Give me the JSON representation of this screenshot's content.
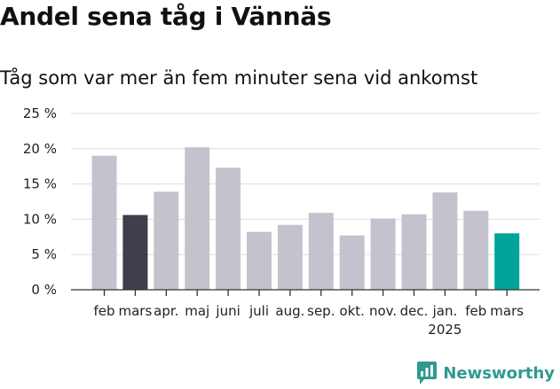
{
  "page": {
    "title": "Andel sena tåg i Vännäs",
    "subtitle": "Tåg som var mer än fem minuter sena vid ankomst"
  },
  "brand": {
    "name": "Newsworthy",
    "color": "#2f9a8f",
    "icon": "newsworthy-chart-logo-icon"
  },
  "chart_data": {
    "type": "bar",
    "categories": [
      "feb",
      "mars",
      "apr.",
      "maj",
      "juni",
      "juli",
      "aug.",
      "sep.",
      "okt.",
      "nov.",
      "dec.",
      "jan.",
      "feb",
      "mars"
    ],
    "year_labels": [
      {
        "category_index": 11,
        "label": "2025"
      }
    ],
    "values": [
      19.0,
      10.6,
      13.9,
      20.2,
      17.3,
      8.2,
      9.2,
      10.9,
      7.7,
      10.1,
      10.7,
      13.8,
      11.2,
      8.0
    ],
    "highlight": {
      "dark_index": 1,
      "accent_index": 13
    },
    "colors": {
      "default": "#c4c3cd",
      "dark": "#3f3e4b",
      "accent": "#00a49a",
      "grid": "#dddddd",
      "axis": "#333333"
    },
    "y_unit_suffix": " %",
    "yticks": [
      0,
      5,
      10,
      15,
      20,
      25
    ],
    "ylim": [
      0,
      25
    ],
    "grid": true,
    "legend": "none",
    "xlabel": "",
    "ylabel": ""
  }
}
